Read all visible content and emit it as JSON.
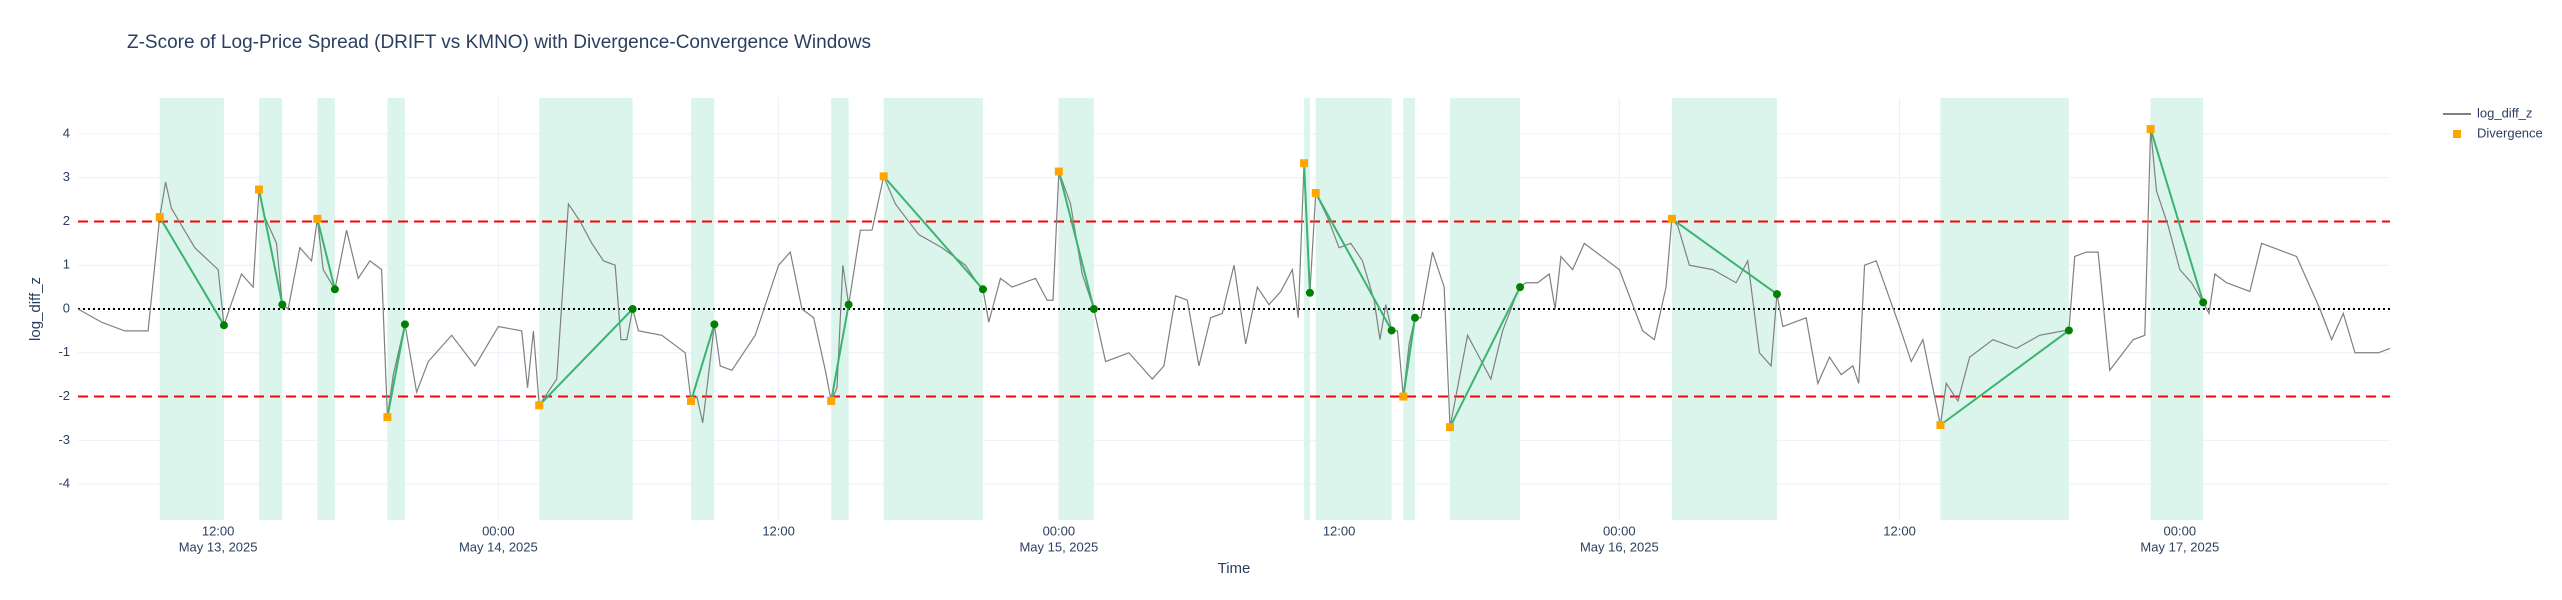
{
  "chart_data": {
    "type": "line",
    "title": "Z-Score of Log-Price Spread (DRIFT vs KMNO) with Divergence-Convergence Windows",
    "x_label": "Time",
    "y_label": "log_diff_z",
    "grid": true,
    "legend": "top-right",
    "xlim": [
      "2025-05-13 06:00",
      "2025-05-17 09:00"
    ],
    "xticks": [
      {
        "value": "2025-05-13 12:00",
        "label": [
          "12:00",
          "May 13, 2025"
        ]
      },
      {
        "value": "2025-05-14 00:00",
        "label": [
          "00:00",
          "May 14, 2025"
        ]
      },
      {
        "value": "2025-05-14 12:00",
        "label": [
          "12:00"
        ]
      },
      {
        "value": "2025-05-15 00:00",
        "label": [
          "00:00",
          "May 15, 2025"
        ]
      },
      {
        "value": "2025-05-15 12:00",
        "label": [
          "12:00"
        ]
      },
      {
        "value": "2025-05-16 00:00",
        "label": [
          "00:00",
          "May 16, 2025"
        ]
      },
      {
        "value": "2025-05-16 12:00",
        "label": [
          "12:00"
        ]
      },
      {
        "value": "2025-05-17 00:00",
        "label": [
          "00:00",
          "May 17, 2025"
        ]
      }
    ],
    "ylim": [
      -4.82,
      4.82
    ],
    "yticks": [
      -4,
      -3,
      -2,
      -1,
      0,
      1,
      2,
      3,
      4
    ],
    "hlines": [
      {
        "value": 2,
        "color": "#ff0000",
        "dash": "dash"
      },
      {
        "value": -2,
        "color": "#ff0000",
        "dash": "dash"
      },
      {
        "value": 0,
        "color": "#000000",
        "dash": "dot"
      }
    ],
    "window_color": "#dcf5ec",
    "connector_color": "#3cb371",
    "series": [
      {
        "name": "log_diff_z",
        "mode": "line",
        "color": "#808080",
        "x": [
          "2025-05-13 06:00",
          "2025-05-13 07:00",
          "2025-05-13 08:00",
          "2025-05-13 09:00",
          "2025-05-13 09:30",
          "2025-05-13 09:45",
          "2025-05-13 10:00",
          "2025-05-13 11:00",
          "2025-05-13 12:00",
          "2025-05-13 12:15",
          "2025-05-13 13:00",
          "2025-05-13 13:30",
          "2025-05-13 13:45",
          "2025-05-13 14:00",
          "2025-05-13 14:30",
          "2025-05-13 14:45",
          "2025-05-13 15:00",
          "2025-05-13 15:30",
          "2025-05-13 16:00",
          "2025-05-13 16:15",
          "2025-05-13 16:30",
          "2025-05-13 17:00",
          "2025-05-13 17:30",
          "2025-05-13 18:00",
          "2025-05-13 18:30",
          "2025-05-13 19:00",
          "2025-05-13 19:15",
          "2025-05-13 19:30",
          "2025-05-13 20:00",
          "2025-05-13 20:30",
          "2025-05-13 21:00",
          "2025-05-13 22:00",
          "2025-05-13 23:00",
          "2025-05-14 00:00",
          "2025-05-14 01:00",
          "2025-05-14 01:15",
          "2025-05-14 01:30",
          "2025-05-14 01:45",
          "2025-05-14 02:00",
          "2025-05-14 02:30",
          "2025-05-14 03:00",
          "2025-05-14 03:30",
          "2025-05-14 04:00",
          "2025-05-14 04:30",
          "2025-05-14 05:00",
          "2025-05-14 05:15",
          "2025-05-14 05:30",
          "2025-05-14 05:45",
          "2025-05-14 06:00",
          "2025-05-14 07:00",
          "2025-05-14 08:00",
          "2025-05-14 08:15",
          "2025-05-14 08:30",
          "2025-05-14 08:45",
          "2025-05-14 09:00",
          "2025-05-14 09:15",
          "2025-05-14 09:30",
          "2025-05-14 10:00",
          "2025-05-14 11:00",
          "2025-05-14 12:00",
          "2025-05-14 12:30",
          "2025-05-14 13:00",
          "2025-05-14 13:30",
          "2025-05-14 14:00",
          "2025-05-14 14:15",
          "2025-05-14 14:30",
          "2025-05-14 14:45",
          "2025-05-14 15:00",
          "2025-05-14 15:30",
          "2025-05-14 16:00",
          "2025-05-14 16:30",
          "2025-05-14 17:00",
          "2025-05-14 18:00",
          "2025-05-14 19:00",
          "2025-05-14 20:00",
          "2025-05-14 20:30",
          "2025-05-14 20:45",
          "2025-05-14 21:00",
          "2025-05-14 21:30",
          "2025-05-14 22:00",
          "2025-05-14 23:00",
          "2025-05-14 23:30",
          "2025-05-14 23:45",
          "2025-05-15 00:00",
          "2025-05-15 00:30",
          "2025-05-15 01:00",
          "2025-05-15 01:30",
          "2025-05-15 02:00",
          "2025-05-15 03:00",
          "2025-05-15 04:00",
          "2025-05-15 04:30",
          "2025-05-15 05:00",
          "2025-05-15 05:30",
          "2025-05-15 06:00",
          "2025-05-15 06:30",
          "2025-05-15 07:00",
          "2025-05-15 07:30",
          "2025-05-15 08:00",
          "2025-05-15 08:30",
          "2025-05-15 09:00",
          "2025-05-15 09:30",
          "2025-05-15 10:00",
          "2025-05-15 10:15",
          "2025-05-15 10:30",
          "2025-05-15 10:45",
          "2025-05-15 11:00",
          "2025-05-15 11:30",
          "2025-05-15 12:00",
          "2025-05-15 12:30",
          "2025-05-15 13:00",
          "2025-05-15 13:30",
          "2025-05-15 13:45",
          "2025-05-15 14:00",
          "2025-05-15 14:15",
          "2025-05-15 14:30",
          "2025-05-15 14:45",
          "2025-05-15 15:00",
          "2025-05-15 15:15",
          "2025-05-15 15:30",
          "2025-05-15 16:00",
          "2025-05-15 16:30",
          "2025-05-15 16:45",
          "2025-05-15 17:00",
          "2025-05-15 17:30",
          "2025-05-15 18:00",
          "2025-05-15 18:30",
          "2025-05-15 19:00",
          "2025-05-15 19:30",
          "2025-05-15 19:45",
          "2025-05-15 20:00",
          "2025-05-15 20:30",
          "2025-05-15 21:00",
          "2025-05-15 21:15",
          "2025-05-15 21:30",
          "2025-05-15 22:00",
          "2025-05-15 22:30",
          "2025-05-15 23:00",
          "2025-05-16 00:00",
          "2025-05-16 01:00",
          "2025-05-16 01:30",
          "2025-05-16 02:00",
          "2025-05-16 02:15",
          "2025-05-16 02:30",
          "2025-05-16 03:00",
          "2025-05-16 04:00",
          "2025-05-16 05:00",
          "2025-05-16 05:30",
          "2025-05-16 06:00",
          "2025-05-16 06:30",
          "2025-05-16 06:45",
          "2025-05-16 07:00",
          "2025-05-16 08:00",
          "2025-05-16 08:30",
          "2025-05-16 09:00",
          "2025-05-16 09:30",
          "2025-05-16 10:00",
          "2025-05-16 10:15",
          "2025-05-16 10:30",
          "2025-05-16 11:00",
          "2025-05-16 12:00",
          "2025-05-16 12:30",
          "2025-05-16 13:00",
          "2025-05-16 13:30",
          "2025-05-16 13:45",
          "2025-05-16 14:00",
          "2025-05-16 14:30",
          "2025-05-16 15:00",
          "2025-05-16 16:00",
          "2025-05-16 17:00",
          "2025-05-16 18:00",
          "2025-05-16 19:00",
          "2025-05-16 19:15",
          "2025-05-16 19:30",
          "2025-05-16 20:00",
          "2025-05-16 20:30",
          "2025-05-16 21:00",
          "2025-05-16 22:00",
          "2025-05-16 22:30",
          "2025-05-16 22:45",
          "2025-05-16 23:00",
          "2025-05-16 23:30",
          "2025-05-17 00:00",
          "2025-05-17 00:30",
          "2025-05-17 01:00",
          "2025-05-17 01:15",
          "2025-05-17 01:30",
          "2025-05-17 02:00",
          "2025-05-17 03:00",
          "2025-05-17 03:30",
          "2025-05-17 04:00",
          "2025-05-17 05:00",
          "2025-05-17 05:30",
          "2025-05-17 06:00",
          "2025-05-17 06:30",
          "2025-05-17 07:00",
          "2025-05-17 07:30",
          "2025-05-17 08:00",
          "2025-05-17 08:30",
          "2025-05-17 09:00"
        ],
        "values": [
          0.0,
          -0.3,
          -0.5,
          -0.5,
          2.1,
          2.9,
          2.3,
          1.4,
          0.9,
          -0.37,
          0.8,
          0.5,
          2.73,
          2.1,
          1.5,
          0.1,
          0.0,
          1.4,
          1.1,
          2.06,
          0.9,
          0.45,
          1.8,
          0.7,
          1.1,
          0.9,
          -2.47,
          -1.5,
          -0.35,
          -1.9,
          -1.2,
          -0.6,
          -1.3,
          -0.4,
          -0.5,
          -1.8,
          -0.5,
          -2.2,
          -2.0,
          -1.6,
          2.4,
          2.0,
          1.5,
          1.1,
          1.0,
          -0.7,
          -0.7,
          0.0,
          -0.5,
          -0.6,
          -1.0,
          -2.1,
          -2.0,
          -2.6,
          -1.5,
          -0.35,
          -1.3,
          -1.4,
          -0.6,
          1.0,
          1.3,
          0.0,
          -0.2,
          -1.4,
          -2.1,
          -1.8,
          1.0,
          0.1,
          1.8,
          1.8,
          3.03,
          2.4,
          1.7,
          1.4,
          1.0,
          0.6,
          0.45,
          -0.3,
          0.7,
          0.5,
          0.7,
          0.2,
          0.2,
          3.14,
          2.4,
          0.8,
          0.0,
          -1.2,
          -1.0,
          -1.6,
          -1.3,
          0.3,
          0.2,
          -1.3,
          -0.2,
          -0.1,
          1.0,
          -0.8,
          0.5,
          0.1,
          0.4,
          0.9,
          -0.2,
          3.33,
          0.37,
          2.65,
          2.1,
          1.4,
          1.5,
          1.1,
          0.2,
          -0.7,
          0.1,
          -0.49,
          -0.5,
          -2.0,
          -0.8,
          -0.2,
          -0.2,
          1.3,
          0.5,
          -2.7,
          -2.0,
          -0.6,
          -1.1,
          -1.6,
          -0.5,
          0.2,
          0.5,
          0.6,
          0.6,
          0.8,
          0.0,
          1.2,
          0.9,
          1.5,
          1.3,
          0.9,
          -0.5,
          -0.7,
          0.5,
          2.06,
          1.9,
          1.0,
          0.9,
          0.6,
          1.1,
          -1.0,
          -1.3,
          0.34,
          -0.4,
          -0.2,
          -1.7,
          -1.1,
          -1.5,
          -1.3,
          -1.7,
          1.0,
          1.1,
          -0.4,
          -1.2,
          -0.7,
          -2.0,
          -2.65,
          -1.7,
          -2.1,
          -1.1,
          -0.7,
          -0.9,
          -0.6,
          -0.5,
          -0.49,
          1.2,
          1.3,
          1.3,
          -1.4,
          -0.7,
          -0.6,
          4.11,
          2.7,
          1.9,
          0.9,
          0.6,
          0.15,
          -0.1,
          0.8,
          0.6,
          0.4,
          1.5,
          1.4,
          1.2,
          0.6,
          0.0,
          -0.7,
          -0.1,
          -1.0,
          -1.0,
          -1.0,
          -0.9
        ]
      },
      {
        "name": "Divergence",
        "mode": "square",
        "color": "#ffa500",
        "x": [
          "2025-05-13 09:30",
          "2025-05-13 13:45",
          "2025-05-13 16:15",
          "2025-05-13 19:15",
          "2025-05-14 01:45",
          "2025-05-14 08:15",
          "2025-05-14 14:15",
          "2025-05-14 16:30",
          "2025-05-15 00:00",
          "2025-05-15 10:30",
          "2025-05-15 11:00",
          "2025-05-15 14:45",
          "2025-05-15 16:45",
          "2025-05-16 02:15",
          "2025-05-16 13:45",
          "2025-05-16 22:45"
        ],
        "values": [
          2.1,
          2.73,
          2.06,
          -2.47,
          -2.2,
          -2.1,
          -2.1,
          3.03,
          3.14,
          3.33,
          2.65,
          -2.0,
          -2.7,
          2.06,
          -2.65,
          4.11
        ]
      },
      {
        "mode": "dot",
        "color": "#008000",
        "x": [
          "2025-05-13 12:15",
          "2025-05-13 14:45",
          "2025-05-13 17:00",
          "2025-05-13 20:00",
          "2025-05-14 05:45",
          "2025-05-14 09:15",
          "2025-05-14 15:00",
          "2025-05-14 20:45",
          "2025-05-15 01:30",
          "2025-05-15 10:45",
          "2025-05-15 14:15",
          "2025-05-15 15:15",
          "2025-05-15 19:45",
          "2025-05-16 06:45",
          "2025-05-16 19:15",
          "2025-05-17 01:00"
        ],
        "values": [
          -0.37,
          0.1,
          0.45,
          -0.35,
          0.0,
          -0.35,
          0.1,
          0.45,
          0.0,
          0.37,
          -0.49,
          -0.2,
          0.5,
          0.34,
          -0.49,
          0.15
        ]
      }
    ]
  }
}
